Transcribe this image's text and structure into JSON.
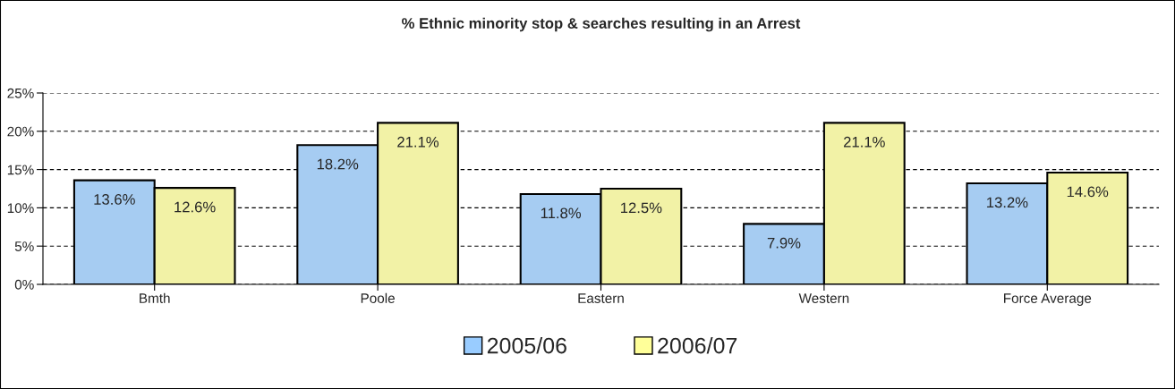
{
  "chart_data": {
    "type": "bar",
    "title": "% Ethnic minority stop & searches resulting in an Arrest",
    "categories": [
      "Bmth",
      "Poole",
      "Eastern",
      "Western",
      "Force Average"
    ],
    "series": [
      {
        "name": "2005/06",
        "color": "#99ccff",
        "values": [
          13.6,
          18.2,
          11.8,
          7.9,
          13.2
        ],
        "value_labels": [
          "13.6%",
          "18.2%",
          "11.8%",
          "7.9%",
          "13.2%"
        ]
      },
      {
        "name": "2006/07",
        "color": "#ffff99",
        "values": [
          12.6,
          21.1,
          12.5,
          21.1,
          14.6
        ],
        "value_labels": [
          "12.6%",
          "21.1%",
          "12.5%",
          "21.1%",
          "14.6%"
        ]
      }
    ],
    "ylim": [
      0,
      25
    ],
    "yticks": [
      {
        "value": 0,
        "label": "0%"
      },
      {
        "value": 5,
        "label": "5%"
      },
      {
        "value": 10,
        "label": "10%"
      },
      {
        "value": 15,
        "label": "15%"
      },
      {
        "value": 20,
        "label": "20%"
      },
      {
        "value": 25,
        "label": "25%"
      }
    ],
    "grid": "y",
    "legend": "bottom"
  }
}
